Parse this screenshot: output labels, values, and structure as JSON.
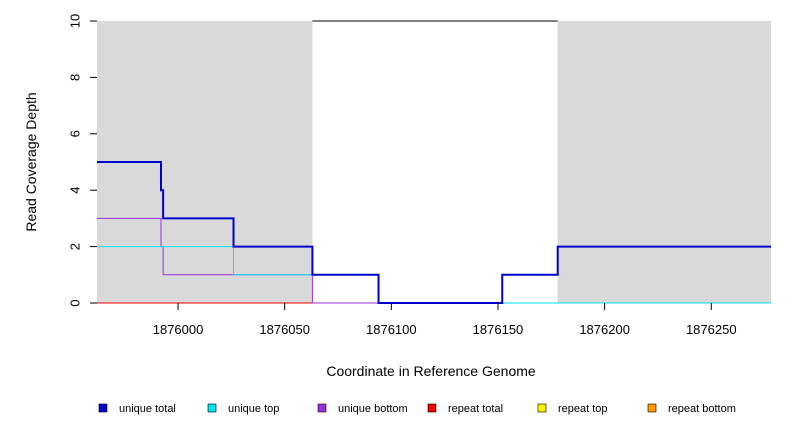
{
  "chart_data": {
    "type": "line",
    "xlabel": "Coordinate in Reference Genome",
    "ylabel": "Read Coverage Depth",
    "xlim": [
      1875962,
      1876278
    ],
    "ylim": [
      0,
      10
    ],
    "x_ticks": [
      1876000,
      1876050,
      1876100,
      1876150,
      1876200,
      1876250
    ],
    "y_ticks": [
      0,
      2,
      4,
      6,
      8,
      10
    ],
    "shaded_regions": [
      {
        "x": [
          1875962,
          1876063
        ],
        "y": [
          0,
          10
        ],
        "color": "#d9d9d9"
      },
      {
        "x": [
          1876178,
          1876278
        ],
        "y": [
          0,
          10
        ],
        "color": "#d9d9d9"
      }
    ],
    "top_reference_line": {
      "x": [
        1876063,
        1876178
      ],
      "y": 10,
      "color": "#000000"
    },
    "series": [
      {
        "name": "unique total",
        "color": "#0000cd",
        "width": 2,
        "points": [
          [
            1875962,
            5
          ],
          [
            1875992,
            5
          ],
          [
            1875992,
            4
          ],
          [
            1875993,
            4
          ],
          [
            1875993,
            3
          ],
          [
            1876026,
            3
          ],
          [
            1876026,
            2
          ],
          [
            1876063,
            2
          ],
          [
            1876063,
            1
          ],
          [
            1876094,
            1
          ],
          [
            1876094,
            0
          ],
          [
            1876152,
            0
          ],
          [
            1876152,
            1
          ],
          [
            1876178,
            1
          ],
          [
            1876178,
            2
          ],
          [
            1876278,
            2
          ]
        ]
      },
      {
        "name": "unique top",
        "color": "#00e5ee",
        "width": 1,
        "points": [
          [
            1875962,
            2
          ],
          [
            1876026,
            2
          ],
          [
            1876026,
            1
          ],
          [
            1876063,
            1
          ],
          [
            1876063,
            1
          ],
          [
            1876094,
            1
          ],
          [
            1876094,
            0
          ],
          [
            1876278,
            0
          ]
        ]
      },
      {
        "name": "unique bottom",
        "color": "#9b30d9",
        "width": 1,
        "points": [
          [
            1875962,
            3
          ],
          [
            1875992,
            3
          ],
          [
            1875992,
            2
          ],
          [
            1875993,
            2
          ],
          [
            1875993,
            1
          ],
          [
            1876063,
            1
          ],
          [
            1876063,
            0
          ],
          [
            1876152,
            0
          ],
          [
            1876152,
            1
          ],
          [
            1876178,
            1
          ],
          [
            1876178,
            2
          ],
          [
            1876278,
            2
          ]
        ]
      },
      {
        "name": "repeat total",
        "color": "#ee0000",
        "width": 1,
        "points": [
          [
            1875962,
            0
          ],
          [
            1876063,
            0
          ]
        ]
      },
      {
        "name": "repeat top",
        "color": "#ffee00",
        "width": 1,
        "points": [
          [
            1875962,
            0
          ],
          [
            1876063,
            0
          ]
        ]
      },
      {
        "name": "repeat bottom",
        "color": "#ff9900",
        "width": 1,
        "points": [
          [
            1875962,
            0
          ],
          [
            1876063,
            0
          ]
        ]
      }
    ],
    "legend_position": "bottom"
  }
}
